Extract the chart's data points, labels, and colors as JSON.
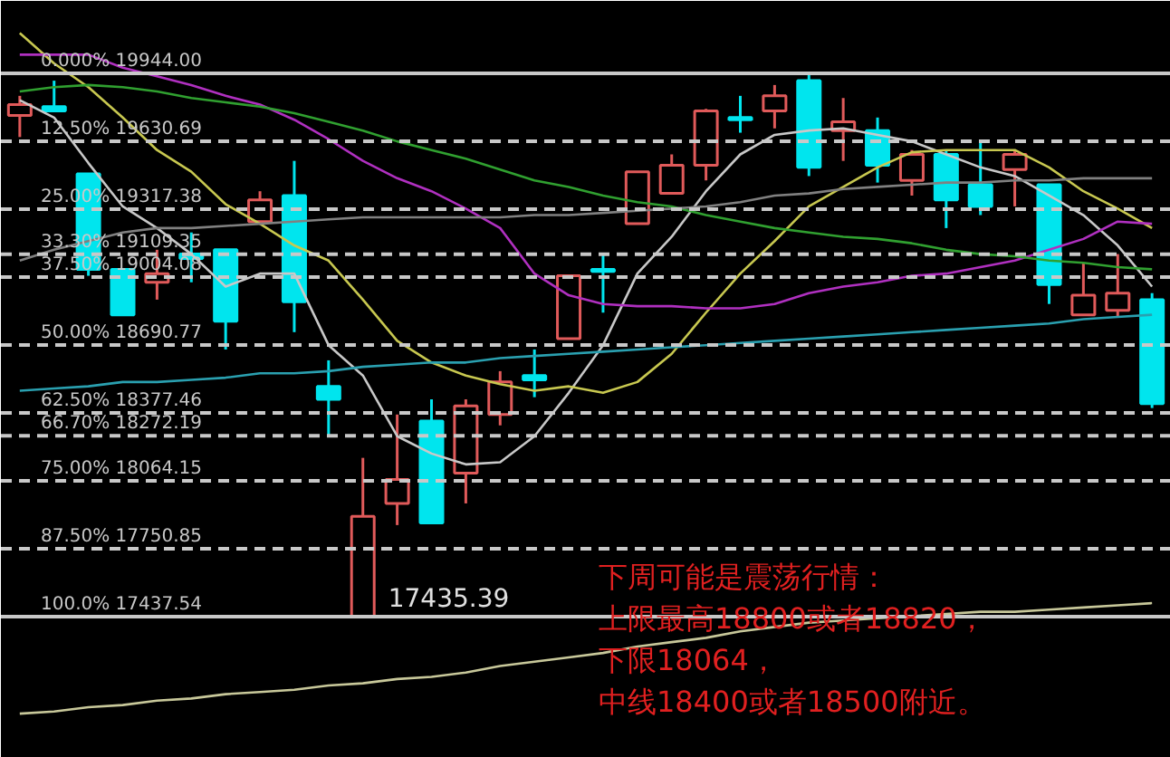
{
  "chart_data": {
    "type": "candlestick",
    "categories": [
      null,
      null,
      null,
      null,
      null,
      null,
      null,
      null,
      null,
      null,
      null,
      null,
      null,
      null,
      null,
      null,
      null,
      null,
      null,
      null,
      null,
      null,
      null,
      null,
      null,
      null,
      null,
      null,
      null,
      null,
      null,
      null,
      null,
      null
    ],
    "ohlc": [
      [
        19750,
        19840,
        19650,
        19800
      ],
      [
        19790,
        19910,
        19770,
        19770
      ],
      [
        19480,
        19480,
        19010,
        19040
      ],
      [
        19040,
        19040,
        18830,
        18830
      ],
      [
        18980,
        19130,
        18900,
        19020
      ],
      [
        19110,
        19210,
        18980,
        19090
      ],
      [
        19130,
        19130,
        18670,
        18800
      ],
      [
        19260,
        19400,
        19260,
        19360
      ],
      [
        19380,
        19540,
        18750,
        18890
      ],
      [
        18500,
        18620,
        18270,
        18440
      ],
      [
        17435.39,
        18170,
        17435.39,
        17900
      ],
      [
        17960,
        18370,
        17860,
        18070
      ],
      [
        18340,
        18440,
        17870,
        17870
      ],
      [
        18100,
        18440,
        17960,
        18410
      ],
      [
        18370,
        18570,
        18320,
        18520
      ],
      [
        18550,
        18670,
        18450,
        18530
      ],
      [
        18720,
        19010,
        18720,
        19010
      ],
      [
        19040,
        19110,
        18840,
        19030
      ],
      [
        19250,
        19490,
        19250,
        19490
      ],
      [
        19390,
        19570,
        19390,
        19520
      ],
      [
        19520,
        19780,
        19450,
        19770
      ],
      [
        19740,
        19840,
        19670,
        19730
      ],
      [
        19770,
        19890,
        19690,
        19840
      ],
      [
        19910,
        19944,
        19470,
        19510
      ],
      [
        19680,
        19830,
        19540,
        19720
      ],
      [
        19680,
        19740,
        19440,
        19520
      ],
      [
        19450,
        19590,
        19380,
        19570
      ],
      [
        19570,
        19590,
        19230,
        19360
      ],
      [
        19430,
        19630,
        19290,
        19330
      ],
      [
        19500,
        19590,
        19330,
        19570
      ],
      [
        19430,
        19430,
        18880,
        18970
      ],
      [
        18830,
        19070,
        18830,
        18920
      ],
      [
        18850,
        19110,
        18820,
        18930
      ],
      [
        18900,
        18930,
        18400,
        18420
      ]
    ],
    "colors": [
      "#e05a5a",
      "#00e5ee",
      "#00e5ee",
      "#00e5ee",
      "#e05a5a",
      "#00e5ee",
      "#00e5ee",
      "#e05a5a",
      "#00e5ee",
      "#00e5ee",
      "#e05a5a",
      "#e05a5a",
      "#00e5ee",
      "#e05a5a",
      "#e05a5a",
      "#00e5ee",
      "#e05a5a",
      "#00e5ee",
      "#e05a5a",
      "#e05a5a",
      "#e05a5a",
      "#00e5ee",
      "#e05a5a",
      "#00e5ee",
      "#e05a5a",
      "#00e5ee",
      "#e05a5a",
      "#00e5ee",
      "#00e5ee",
      "#e05a5a",
      "#00e5ee",
      "#e05a5a",
      "#e05a5a",
      "#00e5ee"
    ],
    "series": [
      {
        "type": "line",
        "color": "#c8c8c8",
        "values": [
          19820,
          19740,
          19530,
          19330,
          19230,
          19110,
          18960,
          19020,
          19020,
          18690,
          18550,
          18270,
          18190,
          18140,
          18150,
          18270,
          18470,
          18690,
          19020,
          19190,
          19400,
          19570,
          19660,
          19680,
          19690,
          19660,
          19630,
          19570,
          19510,
          19470,
          19380,
          19290,
          19150,
          18960
        ]
      },
      {
        "type": "line",
        "color": "#c8c850",
        "values": [
          20130,
          19990,
          19880,
          19740,
          19590,
          19490,
          19340,
          19250,
          19150,
          19080,
          18900,
          18710,
          18610,
          18550,
          18510,
          18480,
          18500,
          18470,
          18520,
          18650,
          18840,
          19020,
          19170,
          19330,
          19420,
          19510,
          19580,
          19590,
          19590,
          19590,
          19510,
          19400,
          19320,
          19230
        ]
      },
      {
        "type": "line",
        "color": "#b030c0",
        "values": [
          20030,
          20030,
          20030,
          19970,
          19930,
          19890,
          19840,
          19800,
          19730,
          19640,
          19540,
          19460,
          19400,
          19320,
          19230,
          19020,
          18920,
          18880,
          18870,
          18870,
          18860,
          18860,
          18880,
          18930,
          18960,
          18980,
          19010,
          19020,
          19050,
          19080,
          19130,
          19180,
          19260,
          19250
        ]
      },
      {
        "type": "line",
        "color": "#30a030",
        "values": [
          19860,
          19880,
          19890,
          19880,
          19860,
          19830,
          19810,
          19790,
          19760,
          19720,
          19680,
          19630,
          19590,
          19550,
          19500,
          19450,
          19420,
          19380,
          19350,
          19330,
          19290,
          19260,
          19230,
          19210,
          19190,
          19180,
          19160,
          19130,
          19110,
          19100,
          19080,
          19070,
          19050,
          19040
        ]
      },
      {
        "type": "line",
        "color": "#808080",
        "values": [
          19080,
          19130,
          19170,
          19210,
          19230,
          19230,
          19240,
          19250,
          19260,
          19270,
          19280,
          19280,
          19280,
          19280,
          19280,
          19290,
          19290,
          19300,
          19310,
          19320,
          19330,
          19350,
          19380,
          19390,
          19410,
          19420,
          19430,
          19440,
          19440,
          19450,
          19450,
          19460,
          19460,
          19460
        ]
      },
      {
        "type": "line",
        "color": "#2aa0b0",
        "values": [
          18480,
          18490,
          18500,
          18520,
          18520,
          18530,
          18540,
          18560,
          18560,
          18570,
          18590,
          18600,
          18610,
          18610,
          18630,
          18640,
          18650,
          18660,
          18670,
          18680,
          18690,
          18700,
          18710,
          18720,
          18730,
          18740,
          18750,
          18760,
          18770,
          18780,
          18790,
          18810,
          18820,
          18830
        ]
      },
      {
        "type": "line",
        "color": "#c8c89a",
        "values": [
          16990,
          17000,
          17020,
          17030,
          17050,
          17060,
          17080,
          17090,
          17100,
          17120,
          17130,
          17150,
          17160,
          17180,
          17210,
          17230,
          17250,
          17270,
          17300,
          17320,
          17340,
          17370,
          17390,
          17410,
          17420,
          17430,
          17440,
          17450,
          17460,
          17460,
          17470,
          17480,
          17490,
          17500
        ]
      }
    ],
    "ylim": [
      16786,
      20278
    ],
    "tick_labels": false,
    "ref_lines": [
      {
        "axis": "y",
        "value": 19944,
        "label": "0.000% 19944.00",
        "color": "#c8c8c8",
        "line_style": "solid"
      },
      {
        "axis": "y",
        "value": 19630.69,
        "label": "12.50% 19630.69",
        "color": "#c8c8c8",
        "line_style": "dashed"
      },
      {
        "axis": "y",
        "value": 19317.38,
        "label": "25.00% 19317.38",
        "color": "#c8c8c8",
        "line_style": "dashed"
      },
      {
        "axis": "y",
        "value": 19109.35,
        "label": "33.30% 19109.35",
        "color": "#c8c8c8",
        "line_style": "dashed"
      },
      {
        "axis": "y",
        "value": 19004.08,
        "label": "37.50% 19004.08",
        "color": "#c8c8c8",
        "line_style": "dashed"
      },
      {
        "axis": "y",
        "value": 18690.77,
        "label": "50.00% 18690.77",
        "color": "#c8c8c8",
        "line_style": "dashed"
      },
      {
        "axis": "y",
        "value": 18377.46,
        "label": "62.50% 18377.46",
        "color": "#c8c8c8",
        "line_style": "dashed"
      },
      {
        "axis": "y",
        "value": 18272.19,
        "label": "66.70% 18272.19",
        "color": "#c8c8c8",
        "line_style": "dashed"
      },
      {
        "axis": "y",
        "value": 18064.15,
        "label": "75.00% 18064.15",
        "color": "#c8c8c8",
        "line_style": "dashed"
      },
      {
        "axis": "y",
        "value": 17750.85,
        "label": "87.50% 17750.85",
        "color": "#c8c8c8",
        "line_style": "dashed"
      },
      {
        "axis": "y",
        "value": 17437.54,
        "label": "100.0% 17437.54",
        "color": "#c8c8c8",
        "line_style": "solid"
      }
    ],
    "annotations": [
      {
        "text": "17435.39",
        "y": 17435.39
      },
      "下周可能是震荡行情：",
      "上限最高18800或者18820，",
      "下限18064，",
      "中线18400或者18500附近。"
    ]
  }
}
